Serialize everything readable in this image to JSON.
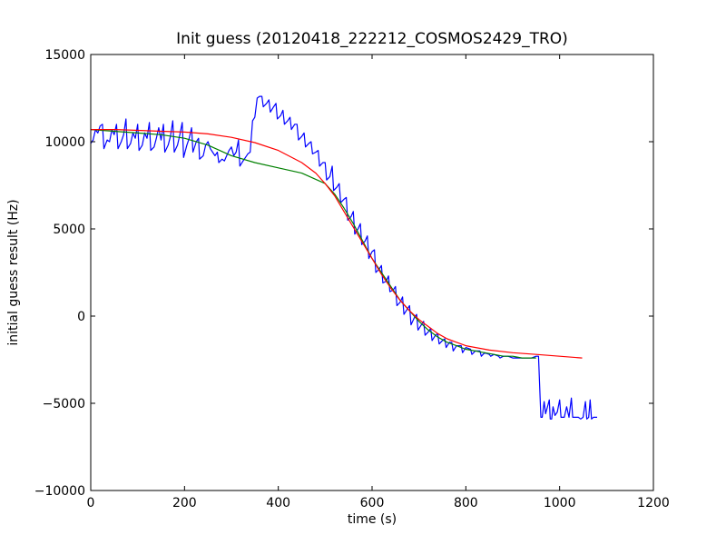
{
  "chart_data": {
    "type": "line",
    "title": "Init guess (20120418_222212_COSMOS2429_TRO)",
    "xlabel": "time (s)",
    "ylabel": "initial guess result (Hz)",
    "xlim": [
      0,
      1200
    ],
    "ylim": [
      -10000,
      15000
    ],
    "xticks": [
      0,
      200,
      400,
      600,
      800,
      1000,
      1200
    ],
    "yticks": [
      -10000,
      -5000,
      0,
      5000,
      10000,
      15000
    ],
    "grid": false,
    "legend": "none",
    "series": [
      {
        "color": "#0000ff",
        "points": [
          [
            0,
            9900
          ],
          [
            5,
            10100
          ],
          [
            10,
            10700
          ],
          [
            15,
            10500
          ],
          [
            20,
            10900
          ],
          [
            25,
            11000
          ],
          [
            28,
            9600
          ],
          [
            35,
            10100
          ],
          [
            40,
            10000
          ],
          [
            45,
            10700
          ],
          [
            50,
            10400
          ],
          [
            55,
            11000
          ],
          [
            58,
            9600
          ],
          [
            65,
            10000
          ],
          [
            70,
            10400
          ],
          [
            75,
            11300
          ],
          [
            78,
            9600
          ],
          [
            85,
            9900
          ],
          [
            90,
            10500
          ],
          [
            95,
            10200
          ],
          [
            100,
            11000
          ],
          [
            103,
            9500
          ],
          [
            110,
            9800
          ],
          [
            115,
            10500
          ],
          [
            120,
            10200
          ],
          [
            125,
            11100
          ],
          [
            128,
            9500
          ],
          [
            135,
            9700
          ],
          [
            140,
            10200
          ],
          [
            145,
            10800
          ],
          [
            150,
            10100
          ],
          [
            155,
            11000
          ],
          [
            158,
            9400
          ],
          [
            165,
            9800
          ],
          [
            170,
            10300
          ],
          [
            175,
            11200
          ],
          [
            178,
            9400
          ],
          [
            185,
            9800
          ],
          [
            190,
            10400
          ],
          [
            195,
            11100
          ],
          [
            198,
            9100
          ],
          [
            205,
            9800
          ],
          [
            210,
            10200
          ],
          [
            215,
            10800
          ],
          [
            218,
            9400
          ],
          [
            225,
            10000
          ],
          [
            230,
            10200
          ],
          [
            232,
            9000
          ],
          [
            240,
            9200
          ],
          [
            245,
            9800
          ],
          [
            250,
            10000
          ],
          [
            255,
            9600
          ],
          [
            260,
            9400
          ],
          [
            265,
            9200
          ],
          [
            270,
            9400
          ],
          [
            273,
            8800
          ],
          [
            280,
            9000
          ],
          [
            285,
            8900
          ],
          [
            290,
            9200
          ],
          [
            295,
            9500
          ],
          [
            300,
            9700
          ],
          [
            305,
            9200
          ],
          [
            310,
            9400
          ],
          [
            315,
            10100
          ],
          [
            318,
            8600
          ],
          [
            325,
            8900
          ],
          [
            330,
            9100
          ],
          [
            335,
            9300
          ],
          [
            340,
            9400
          ],
          [
            345,
            11200
          ],
          [
            350,
            11400
          ],
          [
            355,
            12500
          ],
          [
            360,
            12600
          ],
          [
            365,
            12600
          ],
          [
            368,
            12000
          ],
          [
            375,
            12200
          ],
          [
            380,
            12400
          ],
          [
            383,
            11700
          ],
          [
            390,
            12000
          ],
          [
            395,
            12200
          ],
          [
            398,
            11300
          ],
          [
            405,
            11500
          ],
          [
            410,
            11800
          ],
          [
            413,
            11000
          ],
          [
            420,
            11200
          ],
          [
            425,
            11400
          ],
          [
            428,
            10700
          ],
          [
            435,
            11000
          ],
          [
            440,
            11000
          ],
          [
            443,
            10100
          ],
          [
            450,
            10300
          ],
          [
            455,
            10500
          ],
          [
            458,
            9700
          ],
          [
            465,
            9900
          ],
          [
            470,
            10000
          ],
          [
            473,
            9300
          ],
          [
            480,
            9400
          ],
          [
            485,
            9500
          ],
          [
            488,
            8600
          ],
          [
            495,
            8800
          ],
          [
            500,
            8800
          ],
          [
            503,
            7800
          ],
          [
            510,
            8000
          ],
          [
            515,
            8600
          ],
          [
            518,
            7200
          ],
          [
            525,
            7400
          ],
          [
            530,
            7600
          ],
          [
            533,
            6500
          ],
          [
            540,
            6700
          ],
          [
            545,
            6800
          ],
          [
            548,
            5500
          ],
          [
            555,
            5700
          ],
          [
            560,
            6000
          ],
          [
            563,
            4700
          ],
          [
            570,
            5000
          ],
          [
            575,
            5300
          ],
          [
            578,
            4100
          ],
          [
            585,
            4300
          ],
          [
            590,
            4600
          ],
          [
            593,
            3300
          ],
          [
            600,
            3700
          ],
          [
            605,
            3800
          ],
          [
            608,
            2500
          ],
          [
            615,
            2700
          ],
          [
            620,
            2900
          ],
          [
            623,
            1900
          ],
          [
            630,
            2000
          ],
          [
            635,
            2300
          ],
          [
            638,
            1400
          ],
          [
            645,
            1500
          ],
          [
            650,
            1700
          ],
          [
            653,
            600
          ],
          [
            660,
            800
          ],
          [
            665,
            1100
          ],
          [
            668,
            100
          ],
          [
            675,
            400
          ],
          [
            680,
            600
          ],
          [
            683,
            -500
          ],
          [
            690,
            -100
          ],
          [
            695,
            100
          ],
          [
            698,
            -800
          ],
          [
            705,
            -500
          ],
          [
            710,
            -300
          ],
          [
            713,
            -1100
          ],
          [
            720,
            -900
          ],
          [
            725,
            -700
          ],
          [
            728,
            -1400
          ],
          [
            735,
            -1100
          ],
          [
            740,
            -1000
          ],
          [
            743,
            -1600
          ],
          [
            750,
            -1400
          ],
          [
            755,
            -1300
          ],
          [
            758,
            -1800
          ],
          [
            765,
            -1500
          ],
          [
            770,
            -1500
          ],
          [
            773,
            -2000
          ],
          [
            780,
            -1700
          ],
          [
            790,
            -1700
          ],
          [
            793,
            -2100
          ],
          [
            800,
            -1800
          ],
          [
            810,
            -1900
          ],
          [
            813,
            -2200
          ],
          [
            820,
            -2000
          ],
          [
            830,
            -2000
          ],
          [
            833,
            -2300
          ],
          [
            840,
            -2100
          ],
          [
            850,
            -2200
          ],
          [
            853,
            -2300
          ],
          [
            860,
            -2200
          ],
          [
            870,
            -2300
          ],
          [
            873,
            -2400
          ],
          [
            880,
            -2300
          ],
          [
            890,
            -2300
          ],
          [
            900,
            -2400
          ],
          [
            910,
            -2400
          ],
          [
            920,
            -2400
          ],
          [
            930,
            -2400
          ],
          [
            940,
            -2400
          ],
          [
            950,
            -2300
          ],
          [
            955,
            -2300
          ],
          [
            960,
            -5800
          ],
          [
            963,
            -5800
          ],
          [
            967,
            -4900
          ],
          [
            970,
            -5600
          ],
          [
            975,
            -5100
          ],
          [
            978,
            -4800
          ],
          [
            980,
            -5900
          ],
          [
            983,
            -5900
          ],
          [
            986,
            -5200
          ],
          [
            990,
            -5700
          ],
          [
            995,
            -5500
          ],
          [
            1000,
            -4800
          ],
          [
            1003,
            -5800
          ],
          [
            1010,
            -5800
          ],
          [
            1015,
            -5200
          ],
          [
            1020,
            -5800
          ],
          [
            1025,
            -4700
          ],
          [
            1028,
            -5800
          ],
          [
            1035,
            -5800
          ],
          [
            1040,
            -5800
          ],
          [
            1045,
            -5900
          ],
          [
            1050,
            -5800
          ],
          [
            1055,
            -4900
          ],
          [
            1058,
            -5900
          ],
          [
            1062,
            -5800
          ],
          [
            1065,
            -4800
          ],
          [
            1068,
            -5900
          ],
          [
            1072,
            -5800
          ],
          [
            1075,
            -5800
          ],
          [
            1080,
            -5800
          ]
        ]
      },
      {
        "color": "#008000",
        "points": [
          [
            0,
            10700
          ],
          [
            50,
            10600
          ],
          [
            100,
            10500
          ],
          [
            150,
            10400
          ],
          [
            200,
            10200
          ],
          [
            250,
            9800
          ],
          [
            300,
            9200
          ],
          [
            350,
            8800
          ],
          [
            400,
            8500
          ],
          [
            450,
            8200
          ],
          [
            500,
            7600
          ],
          [
            520,
            7000
          ],
          [
            540,
            6200
          ],
          [
            560,
            5300
          ],
          [
            580,
            4300
          ],
          [
            600,
            3300
          ],
          [
            620,
            2500
          ],
          [
            640,
            1700
          ],
          [
            660,
            900
          ],
          [
            680,
            300
          ],
          [
            700,
            -300
          ],
          [
            720,
            -800
          ],
          [
            740,
            -1200
          ],
          [
            760,
            -1500
          ],
          [
            780,
            -1700
          ],
          [
            800,
            -1900
          ],
          [
            820,
            -2000
          ],
          [
            840,
            -2100
          ],
          [
            860,
            -2200
          ],
          [
            880,
            -2300
          ],
          [
            900,
            -2300
          ],
          [
            920,
            -2400
          ],
          [
            950,
            -2400
          ]
        ]
      },
      {
        "color": "#ff0000",
        "points": [
          [
            0,
            10700
          ],
          [
            50,
            10700
          ],
          [
            100,
            10650
          ],
          [
            150,
            10600
          ],
          [
            200,
            10550
          ],
          [
            250,
            10450
          ],
          [
            300,
            10250
          ],
          [
            350,
            9950
          ],
          [
            400,
            9500
          ],
          [
            450,
            8800
          ],
          [
            480,
            8200
          ],
          [
            500,
            7600
          ],
          [
            520,
            6900
          ],
          [
            540,
            6000
          ],
          [
            560,
            5100
          ],
          [
            580,
            4200
          ],
          [
            600,
            3300
          ],
          [
            620,
            2400
          ],
          [
            640,
            1600
          ],
          [
            660,
            900
          ],
          [
            680,
            300
          ],
          [
            700,
            -200
          ],
          [
            720,
            -600
          ],
          [
            740,
            -1000
          ],
          [
            760,
            -1300
          ],
          [
            780,
            -1500
          ],
          [
            800,
            -1700
          ],
          [
            850,
            -1950
          ],
          [
            900,
            -2100
          ],
          [
            950,
            -2200
          ],
          [
            1000,
            -2300
          ],
          [
            1048,
            -2400
          ]
        ]
      }
    ]
  }
}
